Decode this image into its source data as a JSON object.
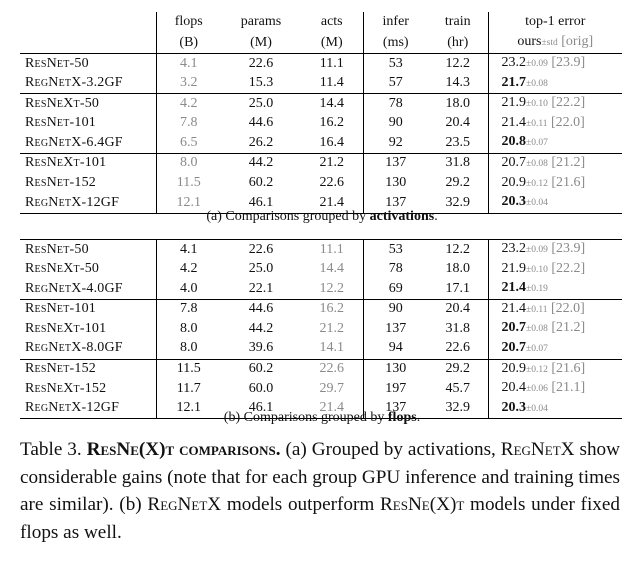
{
  "header": {
    "columns": [
      {
        "line1": "flops",
        "line2": "(B)"
      },
      {
        "line1": "params",
        "line2": "(M)"
      },
      {
        "line1": "acts",
        "line2": "(M)"
      },
      {
        "line1": "infer",
        "line2": "(ms)"
      },
      {
        "line1": "train",
        "line2": "(hr)"
      }
    ],
    "error_title": "top-1 error",
    "error_ours": "ours",
    "error_sd": "±std",
    "error_orig": "[orig]"
  },
  "table_a": {
    "caption_prefix": "(a) Comparisons grouped by ",
    "caption_bold": "activations",
    "caption_suffix": ".",
    "groups": [
      [
        {
          "model": "ResNet-50",
          "flops": "4.1",
          "params": "22.6",
          "acts": "11.1",
          "infer": "53",
          "train": "12.2",
          "err": "23.2",
          "sd": "±0.09",
          "orig": "[23.9]",
          "best": false
        },
        {
          "model": "RegNetX-3.2GF",
          "flops": "3.2",
          "params": "15.3",
          "acts": "11.4",
          "infer": "57",
          "train": "14.3",
          "err": "21.7",
          "sd": "±0.08",
          "orig": "",
          "best": true
        }
      ],
      [
        {
          "model": "ResNeXt-50",
          "flops": "4.2",
          "params": "25.0",
          "acts": "14.4",
          "infer": "78",
          "train": "18.0",
          "err": "21.9",
          "sd": "±0.10",
          "orig": "[22.2]",
          "best": false
        },
        {
          "model": "ResNet-101",
          "flops": "7.8",
          "params": "44.6",
          "acts": "16.2",
          "infer": "90",
          "train": "20.4",
          "err": "21.4",
          "sd": "±0.11",
          "orig": "[22.0]",
          "best": false
        },
        {
          "model": "RegNetX-6.4GF",
          "flops": "6.5",
          "params": "26.2",
          "acts": "16.4",
          "infer": "92",
          "train": "23.5",
          "err": "20.8",
          "sd": "±0.07",
          "orig": "",
          "best": true
        }
      ],
      [
        {
          "model": "ResNeXt-101",
          "flops": "8.0",
          "params": "44.2",
          "acts": "21.2",
          "infer": "137",
          "train": "31.8",
          "err": "20.7",
          "sd": "±0.08",
          "orig": "[21.2]",
          "best": false
        },
        {
          "model": "ResNet-152",
          "flops": "11.5",
          "params": "60.2",
          "acts": "22.6",
          "infer": "130",
          "train": "29.2",
          "err": "20.9",
          "sd": "±0.12",
          "orig": "[21.6]",
          "best": false
        },
        {
          "model": "RegNetX-12GF",
          "flops": "12.1",
          "params": "46.1",
          "acts": "21.4",
          "infer": "137",
          "train": "32.9",
          "err": "20.3",
          "sd": "±0.04",
          "orig": "",
          "best": true
        }
      ]
    ]
  },
  "table_b": {
    "caption_prefix": "(b) Comparisons grouped by ",
    "caption_bold": "flops",
    "caption_suffix": ".",
    "groups": [
      [
        {
          "model": "ResNet-50",
          "flops": "4.1",
          "params": "22.6",
          "acts": "11.1",
          "infer": "53",
          "train": "12.2",
          "err": "23.2",
          "sd": "±0.09",
          "orig": "[23.9]",
          "best": false
        },
        {
          "model": "ResNeXt-50",
          "flops": "4.2",
          "params": "25.0",
          "acts": "14.4",
          "infer": "78",
          "train": "18.0",
          "err": "21.9",
          "sd": "±0.10",
          "orig": "[22.2]",
          "best": false
        },
        {
          "model": "RegNetX-4.0GF",
          "flops": "4.0",
          "params": "22.1",
          "acts": "12.2",
          "infer": "69",
          "train": "17.1",
          "err": "21.4",
          "sd": "±0.19",
          "orig": "",
          "best": true
        }
      ],
      [
        {
          "model": "ResNet-101",
          "flops": "7.8",
          "params": "44.6",
          "acts": "16.2",
          "infer": "90",
          "train": "20.4",
          "err": "21.4",
          "sd": "±0.11",
          "orig": "[22.0]",
          "best": false
        },
        {
          "model": "ResNeXt-101",
          "flops": "8.0",
          "params": "44.2",
          "acts": "21.2",
          "infer": "137",
          "train": "31.8",
          "err": "20.7",
          "sd": "±0.08",
          "orig": "[21.2]",
          "best": true
        },
        {
          "model": "RegNetX-8.0GF",
          "flops": "8.0",
          "params": "39.6",
          "acts": "14.1",
          "infer": "94",
          "train": "22.6",
          "err": "20.7",
          "sd": "±0.07",
          "orig": "",
          "best": true
        }
      ],
      [
        {
          "model": "ResNet-152",
          "flops": "11.5",
          "params": "60.2",
          "acts": "22.6",
          "infer": "130",
          "train": "29.2",
          "err": "20.9",
          "sd": "±0.12",
          "orig": "[21.6]",
          "best": false
        },
        {
          "model": "ResNeXt-152",
          "flops": "11.7",
          "params": "60.0",
          "acts": "29.7",
          "infer": "197",
          "train": "45.7",
          "err": "20.4",
          "sd": "±0.06",
          "orig": "[21.1]",
          "best": false
        },
        {
          "model": "RegNetX-12GF",
          "flops": "12.1",
          "params": "46.1",
          "acts": "21.4",
          "infer": "137",
          "train": "32.9",
          "err": "20.3",
          "sd": "±0.04",
          "orig": "",
          "best": true
        }
      ]
    ]
  },
  "table_caption": {
    "label": "Table 3. ",
    "bold": "ResNe(X)t comparisons.",
    "part1": " (a) Grouped by activations, ",
    "regnetx": "RegNetX",
    "part2": " show considerable gains (note that for each group GPU inference and training times are similar). (b) ",
    "regnetx2": "RegNetX",
    "part3": " models outperform ",
    "resnext": "ResNe(X)t",
    "part4": " models under fixed flops as well."
  }
}
